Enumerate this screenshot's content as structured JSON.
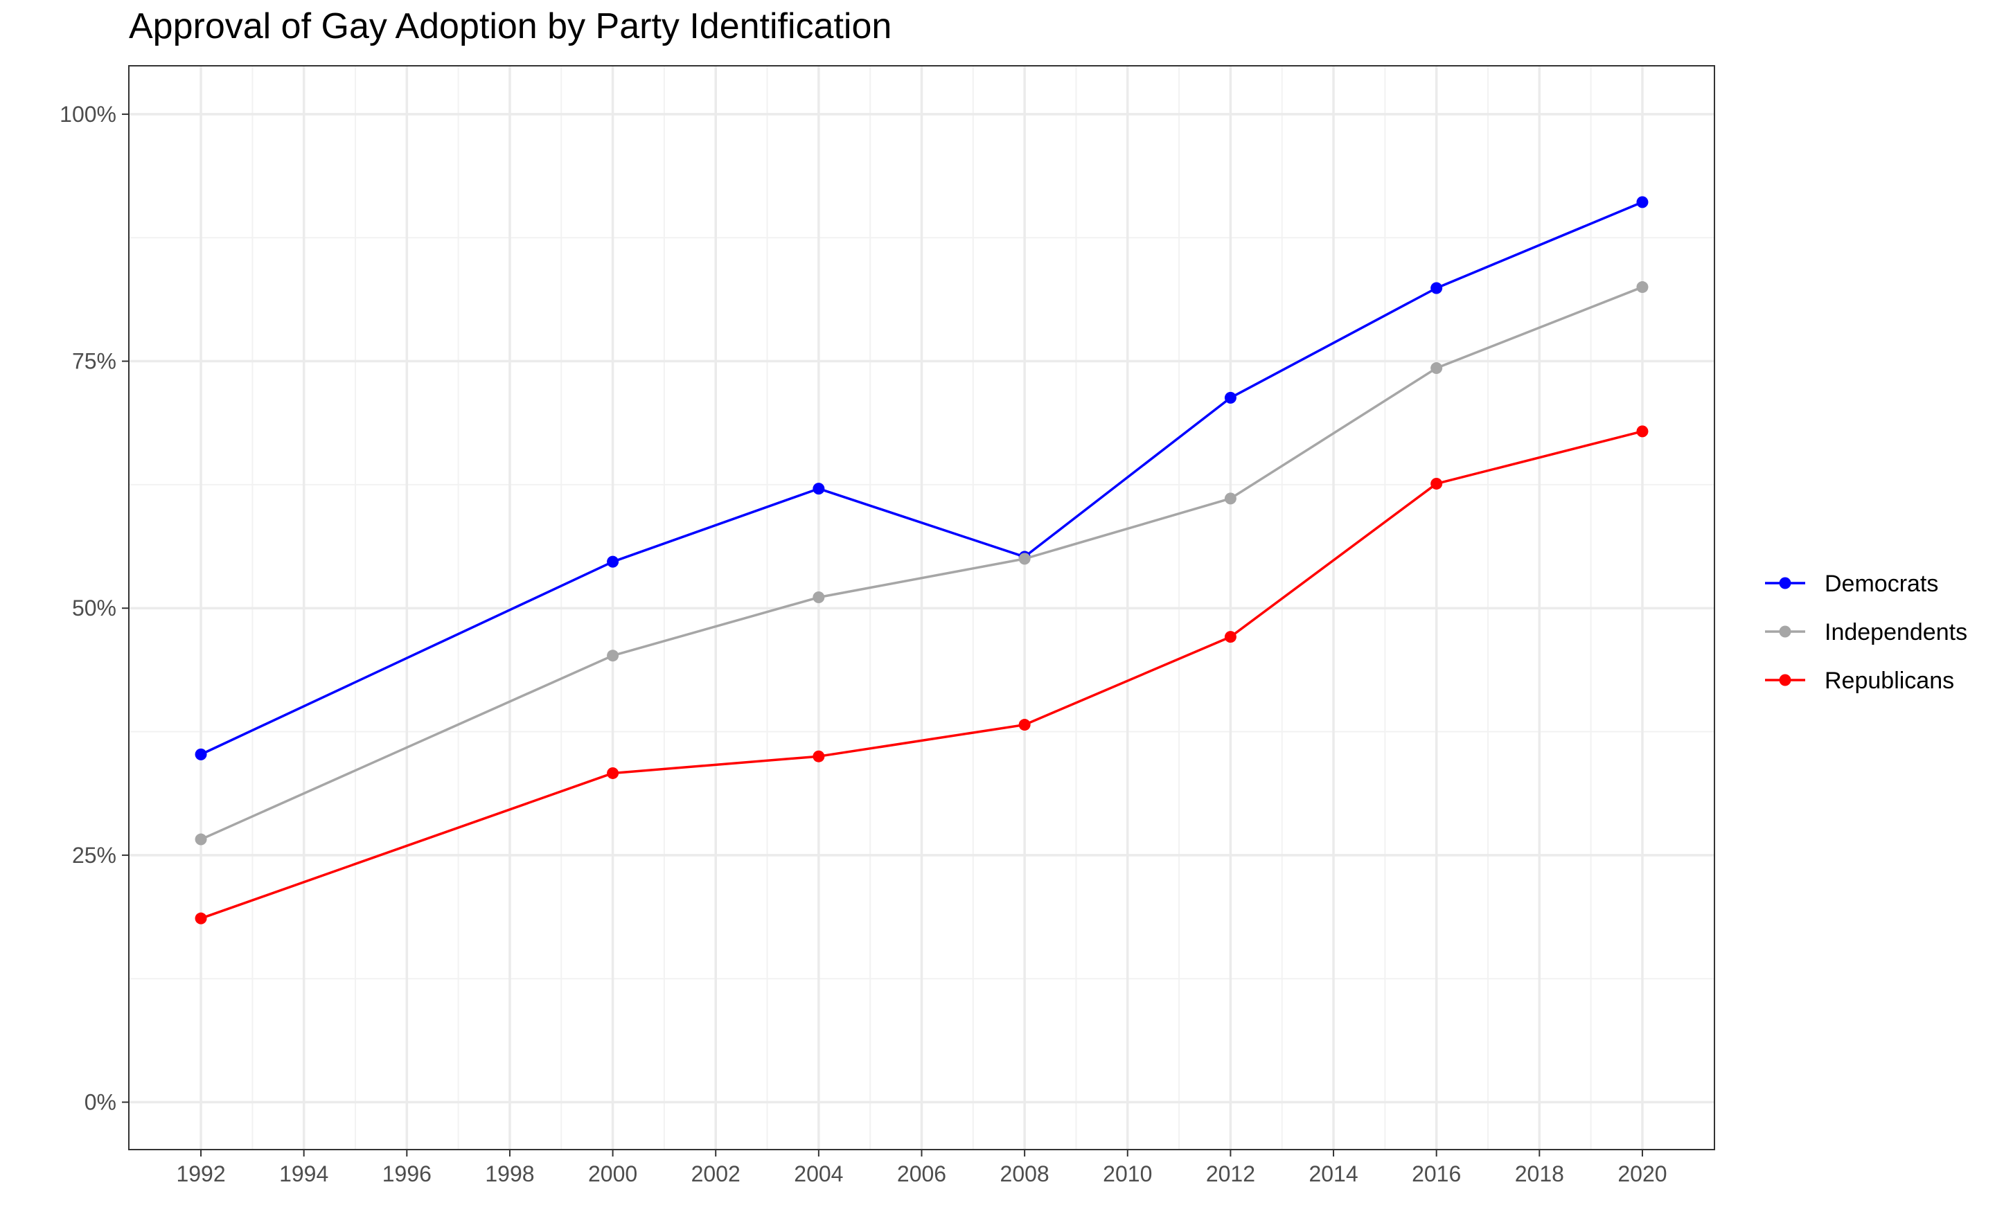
{
  "chart_data": {
    "type": "line",
    "title": "Approval of Gay Adoption by Party Identification",
    "xlabel": "",
    "ylabel": "",
    "x": [
      1992,
      2000,
      2004,
      2008,
      2012,
      2016,
      2020
    ],
    "x_ticks": [
      1992,
      1994,
      1996,
      1998,
      2000,
      2002,
      2004,
      2006,
      2008,
      2010,
      2012,
      2014,
      2016,
      2018,
      2020
    ],
    "x_tick_labels": [
      "1992",
      "1994",
      "1996",
      "1998",
      "2000",
      "2002",
      "2004",
      "2006",
      "2008",
      "2010",
      "2012",
      "2014",
      "2016",
      "2018",
      "2020"
    ],
    "xlim": [
      1990.6,
      2021.4
    ],
    "y_ticks": [
      0,
      0.25,
      0.5,
      0.75,
      1.0
    ],
    "y_tick_labels": [
      "0%",
      "25%",
      "50%",
      "75%",
      "100%"
    ],
    "ylim": [
      -0.048,
      1.049
    ],
    "grid": true,
    "legend_position": "right",
    "series": [
      {
        "name": "Democrats",
        "color": "#0000ff",
        "values": [
          0.352,
          0.547,
          0.621,
          0.552,
          0.713,
          0.824,
          0.911
        ]
      },
      {
        "name": "Independents",
        "color": "#a6a6a6",
        "values": [
          0.266,
          0.452,
          0.511,
          0.55,
          0.611,
          0.743,
          0.825
        ]
      },
      {
        "name": "Republicans",
        "color": "#ff0000",
        "values": [
          0.186,
          0.333,
          0.35,
          0.382,
          0.471,
          0.626,
          0.679
        ]
      }
    ]
  }
}
